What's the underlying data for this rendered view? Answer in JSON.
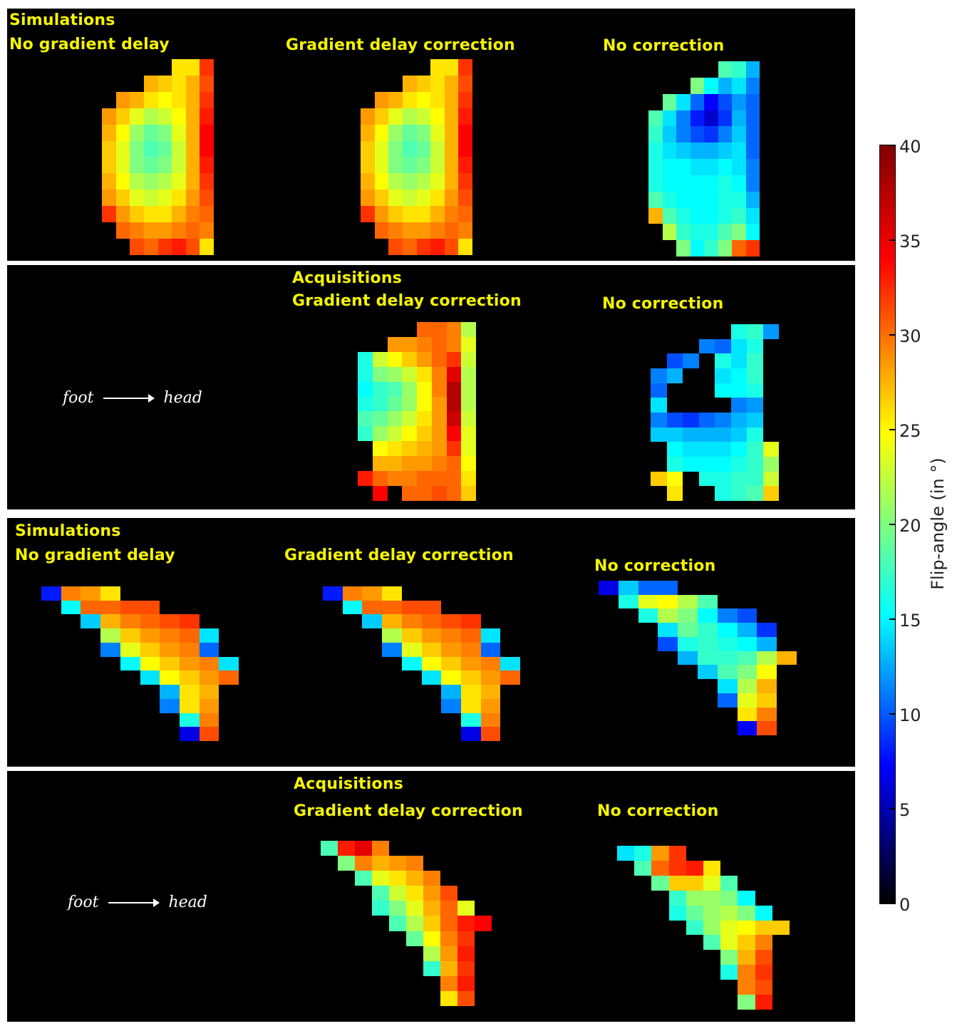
{
  "panels": {
    "p1": {
      "title1": "Simulations",
      "title2": "No gradient delay",
      "col2": "Gradient delay correction",
      "col3": "No correction"
    },
    "p2": {
      "title1": "Acquisitions",
      "col2": "Gradient delay correction",
      "col3": "No correction",
      "foot": "foot",
      "head": "head"
    },
    "p3": {
      "title1": "Simulations",
      "title2": "No gradient delay",
      "col2": "Gradient delay correction",
      "col3": "No correction"
    },
    "p4": {
      "title1": "Acquisitions",
      "col2": "Gradient delay correction",
      "col3": "No correction",
      "foot": "foot",
      "head": "head"
    }
  },
  "chart_data": {
    "type": "heatmap",
    "colormap": "jet",
    "colorbar": {
      "label": "Flip-angle (in °)",
      "range": [
        0,
        40
      ],
      "ticks": [
        0,
        5,
        10,
        15,
        20,
        25,
        30,
        35,
        40
      ]
    },
    "maps": {
      "simA": [
        [
          null,
          null,
          null,
          null,
          null,
          26,
          26,
          33
        ],
        [
          null,
          null,
          null,
          28,
          27,
          26,
          28,
          32
        ],
        [
          null,
          29,
          28,
          26,
          25,
          26,
          28,
          33
        ],
        [
          29,
          27,
          24,
          22,
          23,
          25,
          28,
          34
        ],
        [
          28,
          25,
          21,
          19,
          20,
          24,
          28,
          35
        ],
        [
          27,
          24,
          20,
          18,
          19,
          23,
          28,
          35
        ],
        [
          27,
          24,
          20,
          19,
          20,
          23,
          28,
          34
        ],
        [
          28,
          25,
          22,
          21,
          22,
          24,
          28,
          33
        ],
        [
          29,
          27,
          24,
          23,
          24,
          26,
          29,
          32
        ],
        [
          33,
          29,
          27,
          26,
          26,
          28,
          30,
          31
        ],
        [
          null,
          31,
          30,
          29,
          29,
          30,
          31,
          30
        ],
        [
          null,
          null,
          32,
          31,
          33,
          34,
          32,
          26
        ]
      ],
      "simB": [
        [
          null,
          null,
          null,
          null,
          null,
          18,
          17,
          12
        ],
        [
          null,
          null,
          null,
          20,
          15,
          12,
          14,
          10
        ],
        [
          null,
          19,
          14,
          9,
          5,
          8,
          11,
          9
        ],
        [
          18,
          14,
          10,
          6,
          3,
          7,
          12,
          9
        ],
        [
          17,
          13,
          10,
          8,
          7,
          10,
          13,
          9
        ],
        [
          16,
          14,
          13,
          12,
          12,
          13,
          14,
          9
        ],
        [
          16,
          15,
          15,
          14,
          14,
          15,
          14,
          10
        ],
        [
          16,
          15,
          15,
          15,
          15,
          16,
          15,
          10
        ],
        [
          18,
          16,
          15,
          15,
          15,
          16,
          16,
          12
        ],
        [
          28,
          18,
          16,
          15,
          15,
          16,
          17,
          14
        ],
        [
          null,
          22,
          17,
          16,
          16,
          18,
          20,
          15
        ],
        [
          null,
          null,
          20,
          15,
          17,
          20,
          31,
          33
        ]
      ],
      "acqA": [
        [
          null,
          null,
          null,
          null,
          31,
          31,
          30,
          22
        ],
        [
          null,
          null,
          29,
          29,
          30,
          31,
          30,
          24
        ],
        [
          16,
          23,
          25,
          27,
          29,
          31,
          33,
          23
        ],
        [
          16,
          20,
          21,
          23,
          26,
          30,
          36,
          22
        ],
        [
          15,
          17,
          18,
          21,
          25,
          30,
          38,
          22
        ],
        [
          16,
          17,
          19,
          21,
          25,
          29,
          38,
          22
        ],
        [
          18,
          19,
          21,
          23,
          26,
          29,
          37,
          23
        ],
        [
          17,
          21,
          23,
          25,
          27,
          29,
          35,
          24
        ],
        [
          null,
          25,
          26,
          27,
          28,
          29,
          33,
          24
        ],
        [
          null,
          28,
          28,
          29,
          29,
          30,
          31,
          25
        ],
        [
          34,
          31,
          30,
          30,
          31,
          31,
          31,
          26
        ],
        [
          null,
          35,
          null,
          31,
          31,
          32,
          31,
          27
        ]
      ],
      "acqB": [
        [
          null,
          null,
          null,
          null,
          null,
          16,
          17,
          11
        ],
        [
          null,
          null,
          null,
          10,
          9,
          14,
          16,
          null
        ],
        [
          null,
          8,
          10,
          null,
          16,
          14,
          17,
          null
        ],
        [
          10,
          12,
          null,
          null,
          14,
          15,
          17,
          null
        ],
        [
          9,
          null,
          null,
          null,
          15,
          15,
          16,
          null
        ],
        [
          14,
          null,
          null,
          null,
          null,
          10,
          11,
          null
        ],
        [
          10,
          8,
          7,
          9,
          10,
          12,
          13,
          null
        ],
        [
          13,
          13,
          12,
          12,
          12,
          13,
          16,
          null
        ],
        [
          null,
          15,
          14,
          14,
          14,
          15,
          17,
          24
        ],
        [
          null,
          16,
          15,
          15,
          15,
          16,
          17,
          21
        ],
        [
          27,
          25,
          null,
          16,
          16,
          17,
          17,
          23
        ],
        [
          null,
          26,
          null,
          null,
          16,
          17,
          18,
          27
        ]
      ],
      "simC": [
        [
          6,
          30,
          29,
          26,
          null,
          null,
          null,
          null,
          null,
          null
        ],
        [
          null,
          15,
          31,
          31,
          32,
          32,
          null,
          null,
          null,
          null
        ],
        [
          null,
          null,
          13,
          28,
          30,
          31,
          32,
          33,
          null,
          null
        ],
        [
          null,
          null,
          null,
          22,
          27,
          29,
          30,
          31,
          14,
          null
        ],
        [
          null,
          null,
          null,
          10,
          24,
          27,
          29,
          30,
          9,
          null
        ],
        [
          null,
          null,
          null,
          null,
          15,
          25,
          27,
          29,
          30,
          14
        ],
        [
          null,
          null,
          null,
          null,
          null,
          14,
          25,
          27,
          29,
          31
        ],
        [
          null,
          null,
          null,
          null,
          null,
          null,
          12,
          26,
          28,
          null
        ],
        [
          null,
          null,
          null,
          null,
          null,
          null,
          10,
          26,
          29,
          null
        ],
        [
          null,
          null,
          null,
          null,
          null,
          null,
          null,
          16,
          30,
          null
        ],
        [
          null,
          null,
          null,
          null,
          null,
          null,
          null,
          4,
          32,
          null
        ]
      ],
      "simD": [
        [
          4,
          13,
          9,
          9,
          null,
          null,
          null,
          null,
          null,
          null
        ],
        [
          null,
          16,
          24,
          25,
          22,
          18,
          null,
          null,
          null,
          null
        ],
        [
          null,
          null,
          16,
          22,
          20,
          15,
          10,
          8,
          null,
          null
        ],
        [
          null,
          null,
          null,
          14,
          19,
          17,
          15,
          12,
          7,
          null
        ],
        [
          null,
          null,
          null,
          8,
          16,
          17,
          16,
          15,
          12,
          null
        ],
        [
          null,
          null,
          null,
          null,
          12,
          17,
          17,
          18,
          22,
          28
        ],
        [
          null,
          null,
          null,
          null,
          null,
          13,
          18,
          20,
          25,
          null
        ],
        [
          null,
          null,
          null,
          null,
          null,
          null,
          14,
          22,
          28,
          null
        ],
        [
          null,
          null,
          null,
          null,
          null,
          null,
          9,
          24,
          27,
          null
        ],
        [
          null,
          null,
          null,
          null,
          null,
          null,
          null,
          26,
          30,
          null
        ],
        [
          null,
          null,
          null,
          null,
          null,
          null,
          null,
          5,
          32,
          null
        ]
      ],
      "acqC": [
        [
          18,
          34,
          36,
          30,
          null,
          null,
          null,
          null,
          null,
          null
        ],
        [
          null,
          20,
          30,
          28,
          29,
          30,
          null,
          null,
          null,
          null
        ],
        [
          null,
          null,
          18,
          24,
          26,
          28,
          30,
          null,
          null,
          null
        ],
        [
          null,
          null,
          null,
          18,
          23,
          26,
          29,
          32,
          null,
          null
        ],
        [
          null,
          null,
          null,
          17,
          20,
          24,
          28,
          31,
          24,
          null
        ],
        [
          null,
          null,
          null,
          null,
          18,
          22,
          27,
          31,
          34,
          35
        ],
        [
          null,
          null,
          null,
          null,
          null,
          19,
          25,
          30,
          33,
          null
        ],
        [
          null,
          null,
          null,
          null,
          null,
          null,
          22,
          29,
          34,
          null
        ],
        [
          null,
          null,
          null,
          null,
          null,
          null,
          17,
          28,
          33,
          null
        ],
        [
          null,
          null,
          null,
          null,
          null,
          null,
          null,
          30,
          34,
          null
        ],
        [
          null,
          null,
          null,
          null,
          null,
          null,
          null,
          26,
          32,
          null
        ]
      ],
      "acqD": [
        [
          14,
          16,
          29,
          33,
          null,
          null,
          null,
          null,
          null,
          null
        ],
        [
          null,
          18,
          31,
          33,
          34,
          26,
          null,
          null,
          null,
          null
        ],
        [
          null,
          null,
          19,
          27,
          27,
          24,
          18,
          null,
          null,
          null
        ],
        [
          null,
          null,
          null,
          17,
          21,
          21,
          20,
          15,
          null,
          null
        ],
        [
          null,
          null,
          null,
          16,
          19,
          21,
          22,
          20,
          15,
          null
        ],
        [
          null,
          null,
          null,
          null,
          17,
          21,
          24,
          25,
          27,
          27
        ],
        [
          null,
          null,
          null,
          null,
          null,
          18,
          24,
          27,
          30,
          null
        ],
        [
          null,
          null,
          null,
          null,
          null,
          null,
          20,
          28,
          32,
          null
        ],
        [
          null,
          null,
          null,
          null,
          null,
          null,
          16,
          30,
          33,
          null
        ],
        [
          null,
          null,
          null,
          null,
          null,
          null,
          null,
          30,
          32,
          null
        ],
        [
          null,
          null,
          null,
          null,
          null,
          null,
          null,
          20,
          34,
          null
        ]
      ]
    }
  }
}
